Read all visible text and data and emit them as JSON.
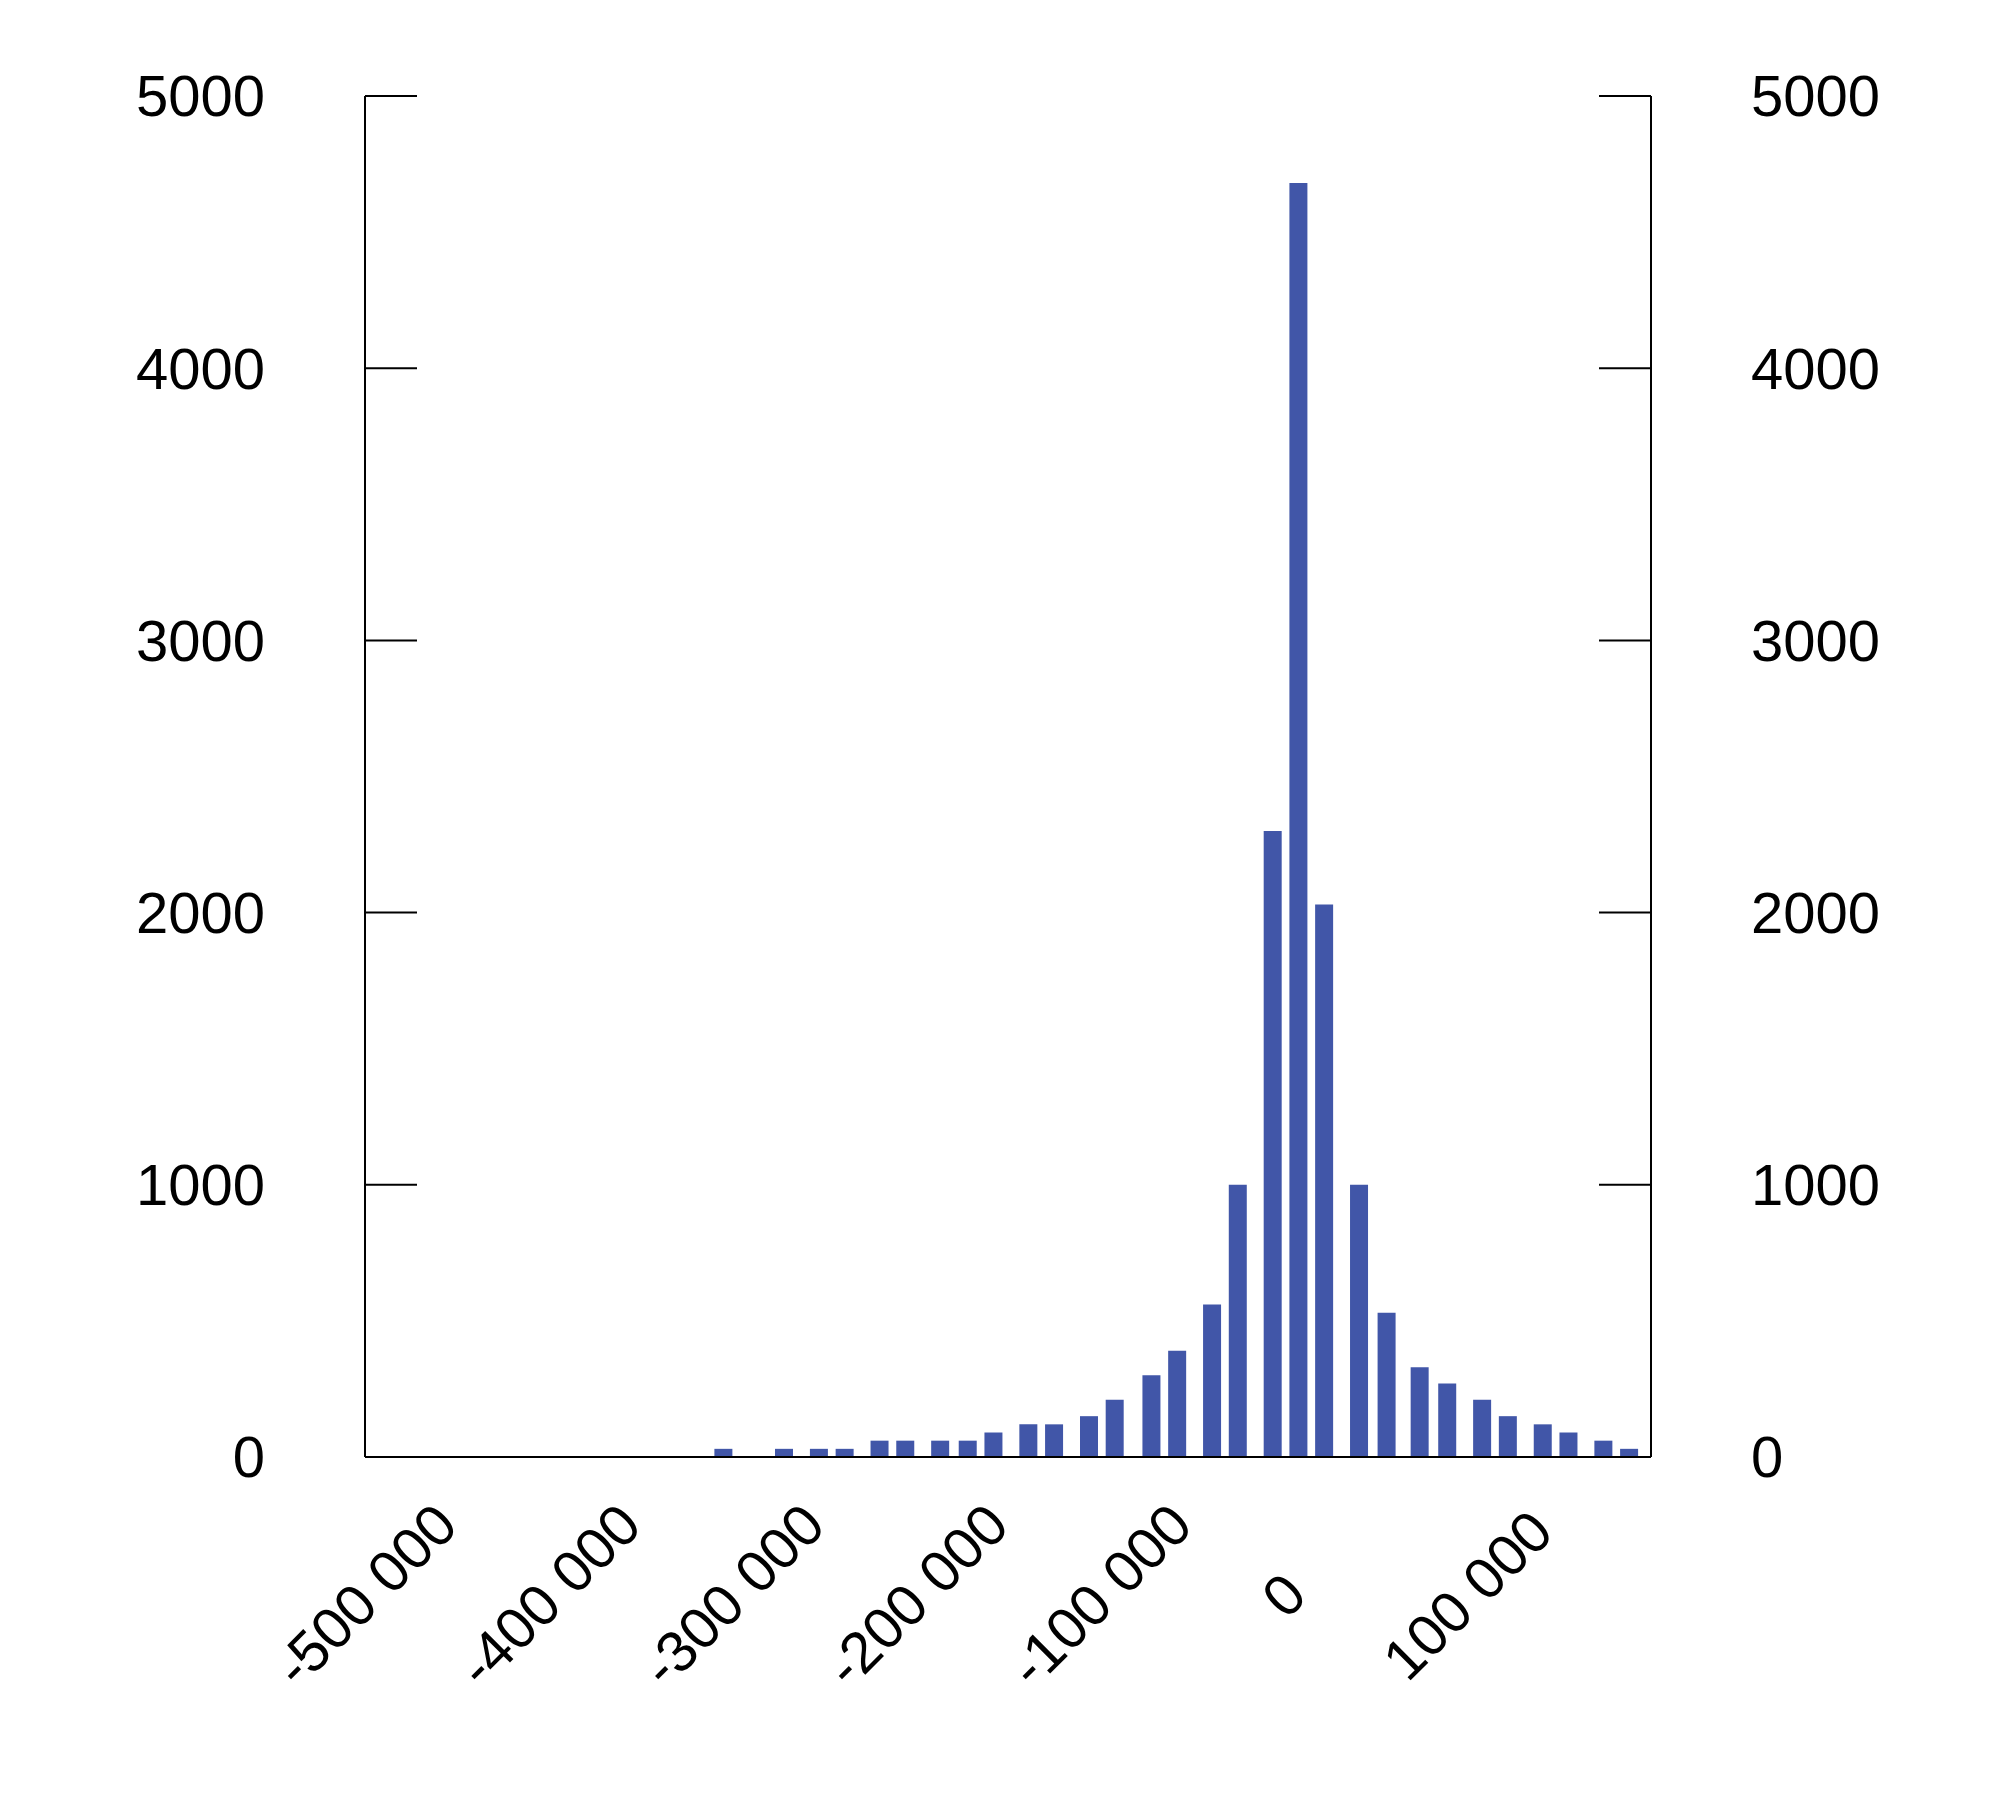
{
  "chart_data": {
    "type": "bar",
    "color": "#4156a8",
    "x": [
      -305000,
      -272000,
      -253000,
      -239000,
      -220000,
      -206000,
      -187000,
      -172000,
      -158000,
      -139000,
      -125000,
      -106000,
      -92000,
      -72000,
      -58000,
      -39000,
      -25000,
      -6000,
      8000,
      22000,
      41000,
      56000,
      74000,
      89000,
      108000,
      122000,
      141000,
      155000,
      174000,
      188000
    ],
    "values": [
      30,
      30,
      30,
      30,
      60,
      60,
      60,
      60,
      90,
      120,
      120,
      150,
      210,
      300,
      390,
      560,
      1000,
      2300,
      4680,
      2030,
      1000,
      530,
      330,
      270,
      210,
      150,
      120,
      90,
      60,
      30
    ],
    "xlim": [
      -500000,
      200000
    ],
    "xticks": [
      {
        "value": -500000,
        "label": "-500 000"
      },
      {
        "value": -400000,
        "label": "-400 000"
      },
      {
        "value": -300000,
        "label": "-300 000"
      },
      {
        "value": -200000,
        "label": "-200 000"
      },
      {
        "value": -100000,
        "label": "-100 000"
      },
      0,
      {
        "value": 100000,
        "label": "100 000"
      }
    ],
    "ylim": [
      0,
      5000
    ],
    "yticks": [
      0,
      1000,
      2000,
      3000,
      4000,
      5000
    ],
    "y2lim": [
      0,
      5000
    ],
    "y2ticks": [
      0,
      1000,
      2000,
      3000,
      4000,
      5000
    ]
  }
}
